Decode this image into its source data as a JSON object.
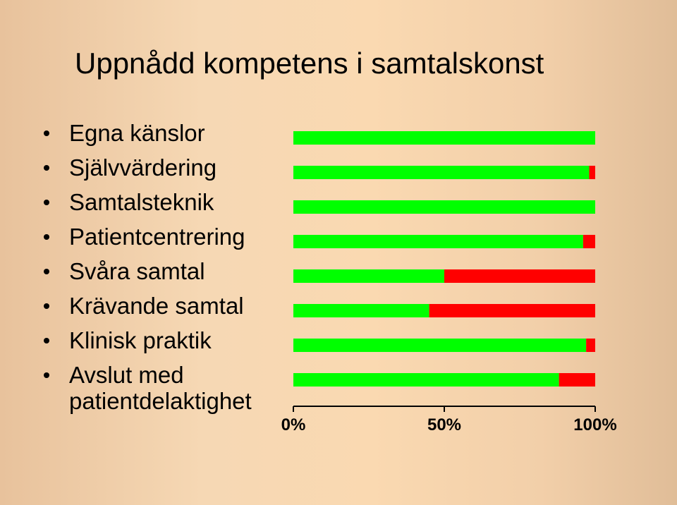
{
  "title": "Uppnådd kompetens i samtalskonst",
  "colors": {
    "green": "#00ff00",
    "red": "#ff0000",
    "axis": "#000000"
  },
  "chart_data": {
    "type": "bar",
    "orientation": "horizontal",
    "stacked": true,
    "categories": [
      "Egna känslor",
      "Självvärdering",
      "Samtalsteknik",
      "Patientcentrering",
      "Svåra samtal",
      "Krävande samtal",
      "Klinisk praktik",
      "Avslut med\npatientdelaktighet"
    ],
    "series": [
      {
        "color": "#00ff00",
        "values": [
          100,
          98,
          100,
          96,
          50,
          45,
          97,
          88
        ]
      },
      {
        "color": "#ff0000",
        "values": [
          0,
          2,
          0,
          4,
          50,
          55,
          3,
          12
        ]
      }
    ],
    "x_ticks": [
      "0%",
      "50%",
      "100%"
    ],
    "xlim": [
      0,
      100
    ],
    "grid": false,
    "legend": "none"
  }
}
